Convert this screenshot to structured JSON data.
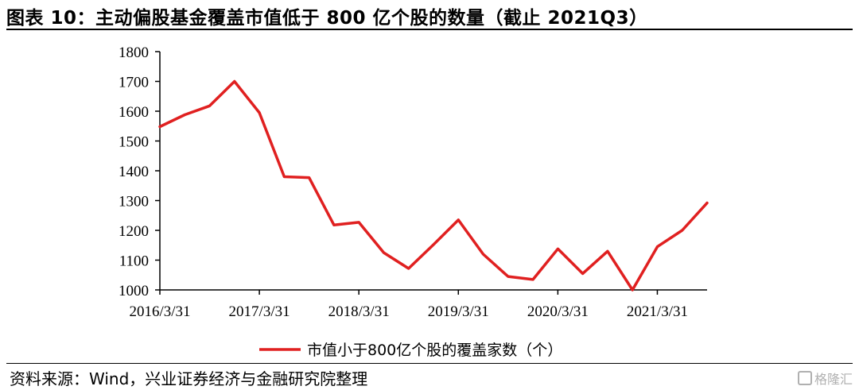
{
  "title": "图表 10：主动偏股基金覆盖市值低于 800 亿个股的数量（截止 2021Q3）",
  "source": "资料来源：Wind，兴业证券经济与金融研究院整理",
  "watermark": "格隆汇",
  "chart_data": {
    "type": "line",
    "x": [
      "2016/3/31",
      "2016/6/30",
      "2016/9/30",
      "2016/12/31",
      "2017/3/31",
      "2017/6/30",
      "2017/9/30",
      "2017/12/31",
      "2018/3/31",
      "2018/6/30",
      "2018/9/30",
      "2018/12/31",
      "2019/3/31",
      "2019/6/30",
      "2019/9/30",
      "2019/12/31",
      "2020/3/31",
      "2020/6/30",
      "2020/9/30",
      "2020/12/31",
      "2021/3/31",
      "2021/6/30",
      "2021/9/30"
    ],
    "x_tick_labels": [
      "2016/3/31",
      "2017/3/31",
      "2018/3/31",
      "2019/3/31",
      "2020/3/31",
      "2021/3/31"
    ],
    "series": [
      {
        "name": "市值小于800亿个股的覆盖家数（个）",
        "color": "#e02020",
        "values": [
          1548,
          1588,
          1618,
          1700,
          1595,
          1380,
          1377,
          1218,
          1227,
          1125,
          1072,
          1152,
          1235,
          1120,
          1045,
          1035,
          1138,
          1055,
          1130,
          1000,
          1145,
          1200,
          1292
        ]
      }
    ],
    "ylim": [
      1000,
      1800
    ],
    "y_ticks": [
      1000,
      1100,
      1200,
      1300,
      1400,
      1500,
      1600,
      1700,
      1800
    ],
    "grid": false,
    "legend_position": "bottom",
    "xlabel": "",
    "ylabel": ""
  }
}
